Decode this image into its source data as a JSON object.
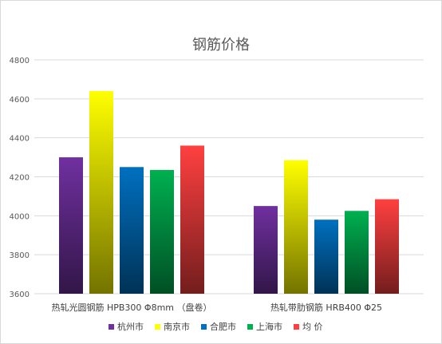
{
  "chart_data": {
    "type": "bar",
    "title": "钢筋价格",
    "xlabel": "",
    "ylabel": "",
    "ylim": [
      3600,
      4800
    ],
    "yticks": [
      3600,
      3800,
      4000,
      4200,
      4400,
      4600,
      4800
    ],
    "grid": true,
    "legend_position": "bottom",
    "categories": [
      "热轧光圆钢筋 HPB300 Φ8mm （盘卷）",
      "热轧带肋钢筋 HRB400 Φ25"
    ],
    "series": [
      {
        "name": "杭州市",
        "color": "#7030a0",
        "values": [
          4300,
          4050
        ]
      },
      {
        "name": "南京市",
        "color": "#ffff00",
        "values": [
          4640,
          4285
        ]
      },
      {
        "name": "合肥市",
        "color": "#0070c0",
        "values": [
          4250,
          3980
        ]
      },
      {
        "name": "上海市",
        "color": "#00b050",
        "values": [
          4235,
          4025
        ]
      },
      {
        "name": "均  价",
        "color": "#ff4040",
        "values": [
          4360,
          4085
        ]
      }
    ]
  }
}
